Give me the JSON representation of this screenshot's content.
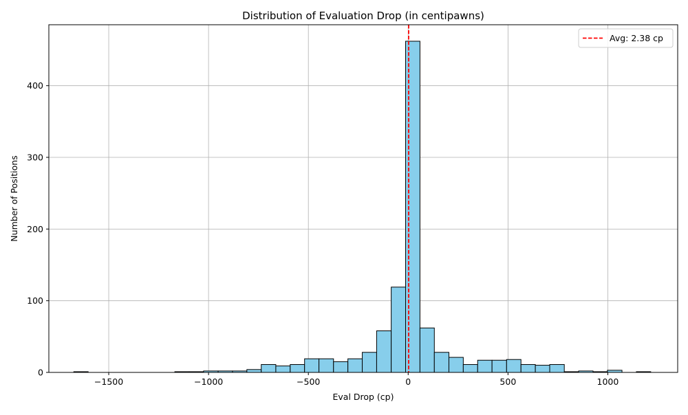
{
  "chart_data": {
    "type": "bar",
    "title": "Distribution of Evaluation Drop (in centipawns)",
    "xlabel": "Eval Drop (cp)",
    "ylabel": "Number of Positions",
    "xlim": [
      -1800,
      1350
    ],
    "ylim": [
      0,
      485
    ],
    "x_ticks": [
      -1500,
      -1000,
      -500,
      0,
      500,
      1000
    ],
    "x_tick_labels": [
      "−1500",
      "−1000",
      "−500",
      "0",
      "500",
      "1000"
    ],
    "y_ticks": [
      0,
      100,
      200,
      300,
      400
    ],
    "y_tick_labels": [
      "0",
      "100",
      "200",
      "300",
      "400"
    ],
    "grid": true,
    "legend_position": "top-right",
    "bar_color": "#87ceeb",
    "bar_edge_color": "#000000",
    "avg_line": {
      "value": 2.38,
      "label": "Avg: 2.38 cp",
      "color": "#ff0000",
      "style": "dashed"
    },
    "bins": [
      {
        "x0": -1675,
        "x1": -1603,
        "count": 1
      },
      {
        "x0": -1603,
        "x1": -1530,
        "count": 0
      },
      {
        "x0": -1530,
        "x1": -1458,
        "count": 0
      },
      {
        "x0": -1458,
        "x1": -1386,
        "count": 0
      },
      {
        "x0": -1386,
        "x1": -1314,
        "count": 0
      },
      {
        "x0": -1314,
        "x1": -1241,
        "count": 0
      },
      {
        "x0": -1241,
        "x1": -1169,
        "count": 0
      },
      {
        "x0": -1169,
        "x1": -1097,
        "count": 1
      },
      {
        "x0": -1097,
        "x1": -1025,
        "count": 1
      },
      {
        "x0": -1025,
        "x1": -952,
        "count": 2
      },
      {
        "x0": -952,
        "x1": -880,
        "count": 2
      },
      {
        "x0": -880,
        "x1": -808,
        "count": 2
      },
      {
        "x0": -808,
        "x1": -736,
        "count": 4
      },
      {
        "x0": -736,
        "x1": -663,
        "count": 11
      },
      {
        "x0": -663,
        "x1": -591,
        "count": 9
      },
      {
        "x0": -591,
        "x1": -519,
        "count": 11
      },
      {
        "x0": -519,
        "x1": -447,
        "count": 19
      },
      {
        "x0": -447,
        "x1": -374,
        "count": 19
      },
      {
        "x0": -374,
        "x1": -302,
        "count": 15
      },
      {
        "x0": -302,
        "x1": -230,
        "count": 19
      },
      {
        "x0": -230,
        "x1": -158,
        "count": 28
      },
      {
        "x0": -158,
        "x1": -85,
        "count": 58
      },
      {
        "x0": -85,
        "x1": -13,
        "count": 119
      },
      {
        "x0": -13,
        "x1": 59,
        "count": 462
      },
      {
        "x0": 59,
        "x1": 131,
        "count": 62
      },
      {
        "x0": 131,
        "x1": 204,
        "count": 28
      },
      {
        "x0": 204,
        "x1": 276,
        "count": 21
      },
      {
        "x0": 276,
        "x1": 348,
        "count": 11
      },
      {
        "x0": 348,
        "x1": 420,
        "count": 17
      },
      {
        "x0": 420,
        "x1": 493,
        "count": 17
      },
      {
        "x0": 493,
        "x1": 565,
        "count": 18
      },
      {
        "x0": 565,
        "x1": 637,
        "count": 11
      },
      {
        "x0": 637,
        "x1": 709,
        "count": 10
      },
      {
        "x0": 709,
        "x1": 782,
        "count": 11
      },
      {
        "x0": 782,
        "x1": 854,
        "count": 1
      },
      {
        "x0": 854,
        "x1": 926,
        "count": 2
      },
      {
        "x0": 926,
        "x1": 998,
        "count": 1
      },
      {
        "x0": 998,
        "x1": 1071,
        "count": 3
      },
      {
        "x0": 1071,
        "x1": 1143,
        "count": 0
      },
      {
        "x0": 1143,
        "x1": 1215,
        "count": 1
      }
    ]
  }
}
